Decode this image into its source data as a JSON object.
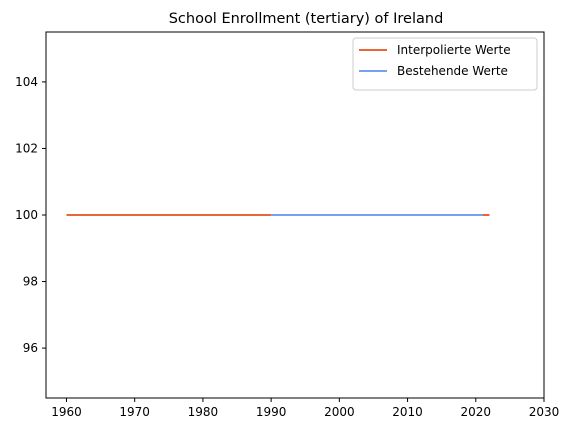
{
  "chart_data": {
    "type": "line",
    "title": "School Enrollment (tertiary) of Ireland",
    "xlabel": "",
    "ylabel": "",
    "xlim": [
      1957,
      2030
    ],
    "ylim": [
      94.5,
      105.5
    ],
    "xticks": [
      1960,
      1970,
      1980,
      1990,
      2000,
      2010,
      2020,
      2030
    ],
    "yticks": [
      96,
      98,
      100,
      102,
      104
    ],
    "grid": false,
    "legend_position": "top-right",
    "series": [
      {
        "name": "Interpolierte Werte",
        "color": "#E8501A",
        "x": [
          1960,
          1990,
          2021,
          2022
        ],
        "y": [
          100,
          100,
          100,
          100
        ],
        "segments": [
          [
            1960,
            1990
          ],
          [
            2021,
            2022
          ]
        ]
      },
      {
        "name": "Bestehende Werte",
        "color": "#6495ED",
        "x": [
          1990,
          2021
        ],
        "y": [
          100,
          100
        ],
        "segments": [
          [
            1990,
            2021
          ]
        ]
      }
    ]
  }
}
